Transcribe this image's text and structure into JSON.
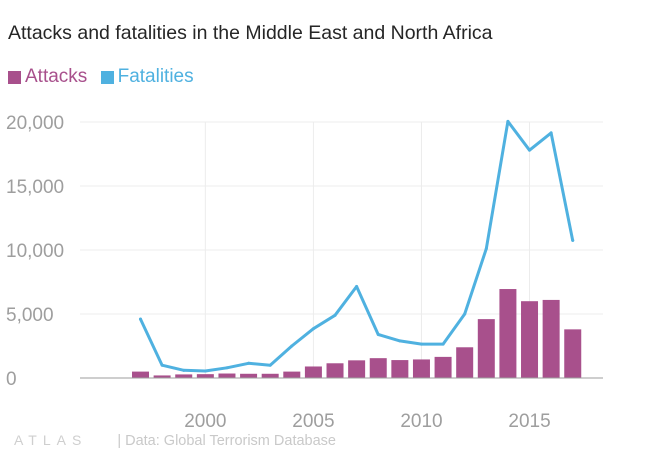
{
  "title": "Attacks and fatalities in the Middle East and North Africa",
  "footer": {
    "logo": "ATLAS",
    "source": "| Data: Global Terrorism Database"
  },
  "colors": {
    "attacks": "#a8508c",
    "fatalities": "#4fb1e0",
    "grid": "#ececec",
    "axis_text": "#9e9e9e",
    "baseline": "#9e9e9e"
  },
  "chart_data": {
    "type": "bar+line",
    "title": "Attacks and fatalities in the Middle East and North Africa",
    "xlabel": "",
    "ylabel": "",
    "x": [
      1997,
      1998,
      1999,
      2000,
      2001,
      2002,
      2003,
      2004,
      2005,
      2006,
      2007,
      2008,
      2009,
      2010,
      2011,
      2012,
      2013,
      2014,
      2015,
      2016,
      2017
    ],
    "series": [
      {
        "name": "Attacks",
        "type": "bar",
        "values": [
          500,
          200,
          280,
          300,
          350,
          330,
          330,
          500,
          900,
          1150,
          1380,
          1550,
          1400,
          1450,
          1650,
          2400,
          4600,
          6950,
          6000,
          6100,
          3800
        ]
      },
      {
        "name": "Fatalities",
        "type": "line",
        "values": [
          4600,
          1000,
          600,
          550,
          800,
          1150,
          1000,
          2500,
          3850,
          4900,
          7150,
          3400,
          2900,
          2650,
          2650,
          5000,
          10100,
          20050,
          17800,
          19150,
          10750
        ]
      }
    ],
    "xticks": [
      2000,
      2005,
      2010,
      2015
    ],
    "xtick_labels": [
      "2000",
      "2005",
      "2010",
      "2015"
    ],
    "yticks": [
      0,
      5000,
      10000,
      15000,
      20000
    ],
    "ytick_labels": [
      "0",
      "5,000",
      "10,000",
      "15,000",
      "20,000"
    ],
    "xlim": [
      1994.2,
      2018.4
    ],
    "ylim": [
      0,
      20000
    ],
    "grid": true,
    "legend": "top-left"
  }
}
